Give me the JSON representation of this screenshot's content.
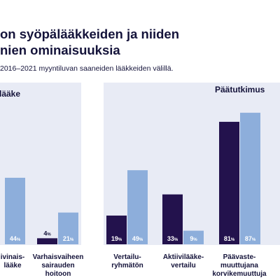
{
  "header": {
    "title_line1": "on syöpälääkkeiden ja niiden",
    "title_line2": "nien ominaisuuksia",
    "subtitle": "2016–2021 myyntiluvan saaneiden lääkkeiden välillä."
  },
  "colors": {
    "dark": "#23124d",
    "light": "#8daedb",
    "panel": "#e8ebf5",
    "text": "#14133a"
  },
  "chart_data": {
    "type": "bar",
    "panels": [
      {
        "title": "lääke",
        "categories": [
          "ivinais-",
          "Varhaisvaiheen sairauden hoitoon"
        ]
      },
      {
        "title": "Päätutkimus",
        "categories": [
          "Vertailu-ryhmätön",
          "Aktiivilääke-vertailu",
          "Päävaste-muuttujana korvikemuuttuja"
        ]
      }
    ],
    "categories": [
      "ivinais- lääke",
      "Varhaisvaiheen sairauden hoitoon",
      "Vertailu-ryhmätön",
      "Aktiivilääke-vertailu",
      "Päävaste-muuttujana korvikemuuttuja",
      ""
    ],
    "series": [
      {
        "values": [
          null,
          4,
          19,
          33,
          81,
          null
        ]
      },
      {
        "values": [
          44,
          21,
          49,
          9,
          87,
          null
        ]
      }
    ],
    "ylim": [
      0,
      100
    ],
    "grid": false
  },
  "labels": {
    "bars": [
      {
        "text": "4",
        "pct": "%"
      },
      {
        "text": "44",
        "pct": "%"
      },
      {
        "text": "21",
        "pct": "%"
      },
      {
        "text": "19",
        "pct": "%"
      },
      {
        "text": "49",
        "pct": "%"
      },
      {
        "text": "33",
        "pct": "%"
      },
      {
        "text": "9",
        "pct": "%"
      },
      {
        "text": "81",
        "pct": "%"
      },
      {
        "text": "87",
        "pct": "%"
      }
    ],
    "categories": [
      {
        "lines": [
          "ivinais-",
          "lääke"
        ]
      },
      {
        "lines": [
          "Varhaisvaiheen",
          "sairauden",
          "hoitoon"
        ]
      },
      {
        "lines": [
          "Vertailu-",
          "ryhmätön"
        ]
      },
      {
        "lines": [
          "Aktiivilääke-",
          "vertailu"
        ]
      },
      {
        "lines": [
          "Päävaste-",
          "muuttujana",
          "korvikemuuttuja"
        ]
      }
    ]
  }
}
